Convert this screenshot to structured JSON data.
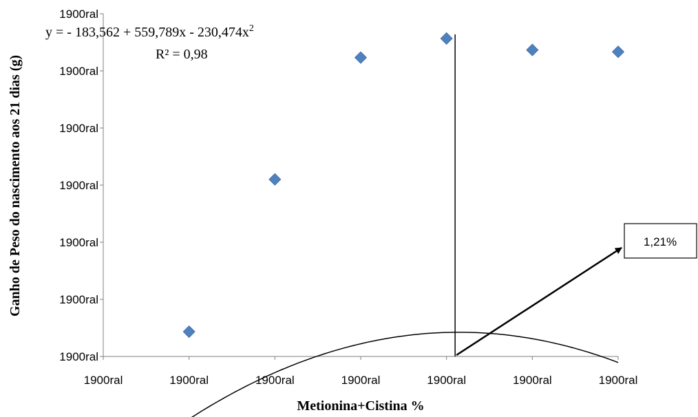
{
  "chart_data": {
    "type": "scatter",
    "title": "",
    "xlabel": "Metionina+Cistina %",
    "ylabel": "Ganho de Peso do nascimento aos 21 dias (g)",
    "x_tick_labels": [
      "1900ral",
      "1900ral",
      "1900ral",
      "1900ral",
      "1900ral",
      "1900ral",
      "1900ral"
    ],
    "y_tick_labels": [
      "1900ral",
      "1900ral",
      "1900ral",
      "1900ral",
      "1900ral",
      "1900ral",
      "1900ral"
    ],
    "x": [
      0.9,
      1.0,
      1.1,
      1.2,
      1.3,
      1.4
    ],
    "y": [
      156.5,
      196.5,
      228.5,
      233.5,
      230.5,
      230.0
    ],
    "xlim": [
      0.8,
      1.4
    ],
    "ylim": [
      150,
      240
    ],
    "trendline": {
      "type": "polynomial",
      "equation": "y = - 183,562 + 559,789x - 230,474x",
      "equation_exponent": "2",
      "r2": "R² = 0,98",
      "coefficients": [
        -183.562,
        559.789,
        -230.474
      ]
    },
    "vertical_line_x": 1.21,
    "annotation": {
      "text": "1,21%"
    },
    "marker_color": "#4F81BD",
    "grid": false,
    "legend": "none"
  }
}
